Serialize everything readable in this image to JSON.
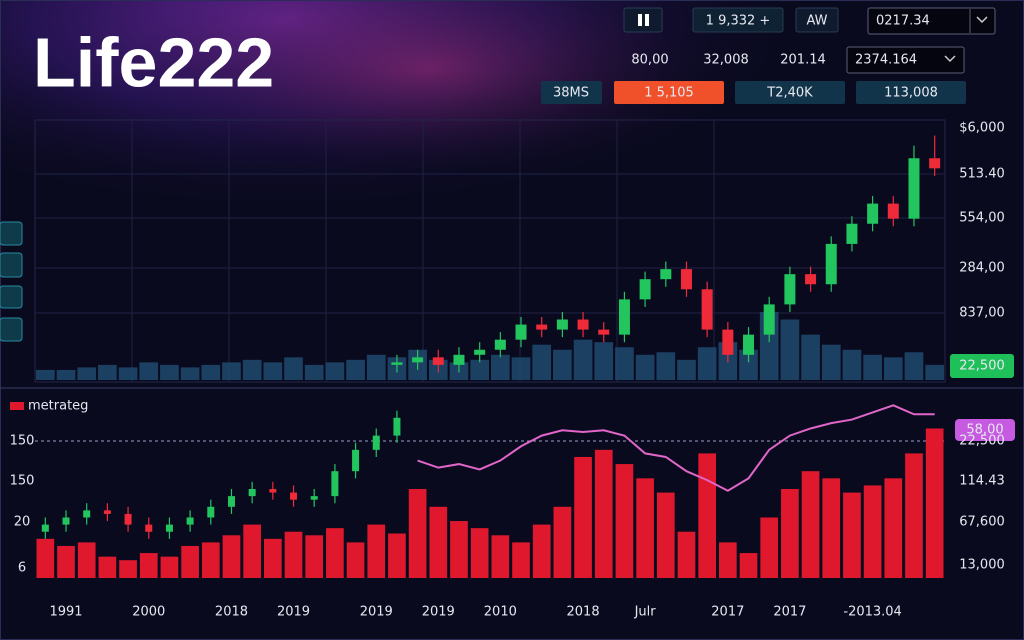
{
  "header": {
    "title": "Life222"
  },
  "toolbar": {
    "counter": "1 9,332 +",
    "mode": "AW",
    "value": "0217.34",
    "stats": [
      "80,00",
      "32,008",
      "201.14"
    ],
    "select": "2374.164",
    "tabs": [
      "38MS",
      "1 5,105",
      "T2,40K",
      "113,008"
    ]
  },
  "chart_data": [
    {
      "type": "candlestick",
      "ylim": [
        0,
        100
      ],
      "axis_labels": [
        "$6,000",
        "513.40",
        "554,00",
        "284,00",
        "837,00"
      ],
      "badge": "22,500",
      "up_color": "#22c55e",
      "down_color": "#ef2b3a",
      "volume_color": "#1f4a6e",
      "open": [
        null,
        null,
        null,
        null,
        null,
        null,
        null,
        null,
        null,
        null,
        null,
        null,
        null,
        null,
        null,
        null,
        null,
        6,
        7,
        9,
        6,
        10,
        12,
        16,
        22,
        20,
        24,
        20,
        18,
        32,
        40,
        44,
        36,
        20,
        10,
        18,
        30,
        42,
        38,
        54,
        62,
        70,
        64,
        88
      ],
      "close": [
        null,
        null,
        null,
        null,
        null,
        null,
        null,
        null,
        null,
        null,
        null,
        null,
        null,
        null,
        null,
        null,
        null,
        7,
        9,
        6,
        10,
        12,
        16,
        22,
        20,
        24,
        20,
        18,
        32,
        40,
        44,
        36,
        20,
        10,
        18,
        30,
        42,
        38,
        54,
        62,
        70,
        64,
        88,
        84
      ],
      "high": [
        null,
        null,
        null,
        null,
        null,
        null,
        null,
        null,
        null,
        null,
        null,
        null,
        null,
        null,
        null,
        null,
        null,
        10,
        12,
        12,
        13,
        15,
        19,
        25,
        25,
        27,
        27,
        23,
        35,
        43,
        47,
        47,
        39,
        23,
        21,
        33,
        45,
        45,
        57,
        65,
        73,
        73,
        93,
        97
      ],
      "low": [
        null,
        null,
        null,
        null,
        null,
        null,
        null,
        null,
        null,
        null,
        null,
        null,
        null,
        null,
        null,
        null,
        null,
        3,
        4,
        3,
        3,
        7,
        9,
        13,
        17,
        17,
        17,
        15,
        15,
        29,
        37,
        33,
        17,
        7,
        7,
        15,
        27,
        35,
        35,
        51,
        59,
        61,
        61,
        81
      ],
      "volume": [
        4,
        4,
        5,
        6,
        5,
        7,
        6,
        5,
        6,
        7,
        8,
        7,
        9,
        6,
        7,
        8,
        10,
        9,
        12,
        8,
        7,
        8,
        10,
        9,
        14,
        12,
        16,
        15,
        13,
        10,
        11,
        8,
        13,
        15,
        12,
        27,
        24,
        18,
        14,
        12,
        10,
        9,
        11,
        6
      ]
    },
    {
      "type": "bar",
      "ylim": [
        0,
        100
      ],
      "categories": [
        null,
        "1991",
        null,
        null,
        null,
        "2000",
        null,
        null,
        null,
        "2018",
        null,
        null,
        "2019",
        null,
        null,
        null,
        "2019",
        null,
        null,
        "2019",
        null,
        null,
        "2010",
        null,
        null,
        null,
        "2018",
        null,
        null,
        "Julr",
        null,
        null,
        null,
        "2017",
        null,
        null,
        "2017",
        null,
        null,
        null,
        "-2013.04",
        null,
        null,
        null
      ],
      "left_labels": [
        "150",
        "150",
        "20",
        "6"
      ],
      "right_labels": [
        "22,500",
        "114.43",
        "67,600",
        "13,000"
      ],
      "badge": "58,00",
      "series": [
        {
          "name": "metrateg",
          "color": "#e0182d",
          "values": [
            22,
            18,
            20,
            12,
            10,
            14,
            12,
            18,
            20,
            24,
            30,
            22,
            26,
            24,
            28,
            20,
            30,
            25,
            50,
            40,
            32,
            28,
            24,
            20,
            30,
            40,
            68,
            72,
            64,
            56,
            48,
            26,
            70,
            20,
            14,
            34,
            50,
            60,
            56,
            48,
            52,
            56,
            70,
            84
          ]
        }
      ],
      "line": {
        "color": "#e066c8",
        "values": [
          null,
          null,
          null,
          null,
          null,
          null,
          null,
          null,
          null,
          null,
          null,
          null,
          null,
          null,
          null,
          null,
          null,
          null,
          66,
          62,
          64,
          61,
          66,
          74,
          80,
          83,
          82,
          83,
          80,
          70,
          68,
          60,
          55,
          49,
          56,
          72,
          80,
          84,
          87,
          89,
          93,
          97,
          92,
          92
        ]
      },
      "up_color": "#22c55e",
      "down_color": "#ef2b3a",
      "open": [
        26,
        30,
        34,
        38,
        36,
        30,
        26,
        30,
        34,
        40,
        46,
        50,
        48,
        44,
        46,
        60,
        72,
        80,
        null,
        null,
        null,
        null,
        null,
        null,
        null,
        null,
        null,
        null,
        null,
        null,
        null,
        null,
        null,
        null,
        null,
        null,
        null,
        null,
        null,
        null,
        null,
        null,
        null,
        null
      ],
      "close": [
        30,
        34,
        38,
        36,
        30,
        26,
        30,
        34,
        40,
        46,
        50,
        48,
        44,
        46,
        60,
        72,
        80,
        90,
        null,
        null,
        null,
        null,
        null,
        null,
        null,
        null,
        null,
        null,
        null,
        null,
        null,
        null,
        null,
        null,
        null,
        null,
        null,
        null,
        null,
        null,
        null,
        null,
        null,
        null
      ],
      "high": [
        34,
        38,
        42,
        42,
        40,
        34,
        34,
        38,
        44,
        50,
        54,
        54,
        52,
        50,
        64,
        76,
        84,
        94,
        null,
        null,
        null,
        null,
        null,
        null,
        null,
        null,
        null,
        null,
        null,
        null,
        null,
        null,
        null,
        null,
        null,
        null,
        null,
        null,
        null,
        null,
        null,
        null,
        null,
        null
      ],
      "low": [
        22,
        26,
        30,
        32,
        26,
        22,
        22,
        26,
        30,
        36,
        42,
        44,
        40,
        40,
        42,
        56,
        68,
        76,
        null,
        null,
        null,
        null,
        null,
        null,
        null,
        null,
        null,
        null,
        null,
        null,
        null,
        null,
        null,
        null,
        null,
        null,
        null,
        null,
        null,
        null,
        null,
        null,
        null,
        null
      ]
    }
  ]
}
